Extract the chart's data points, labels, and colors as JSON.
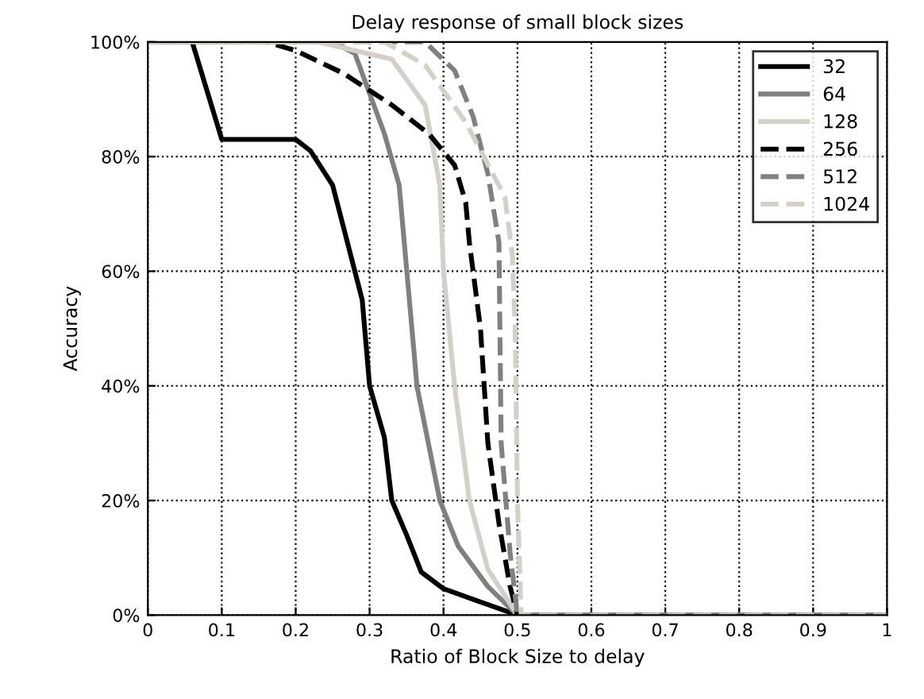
{
  "chart_data": {
    "type": "line",
    "title": "Delay response of small block sizes",
    "xlabel": "Ratio of Block Size to delay",
    "ylabel": "Accuracy",
    "xlim": [
      0,
      1
    ],
    "ylim": [
      0,
      100
    ],
    "xticks": [
      0,
      0.1,
      0.2,
      0.3,
      0.4,
      0.5,
      0.6,
      0.7,
      0.8,
      0.9,
      1
    ],
    "yticks": [
      {
        "value": 0,
        "label": "0%"
      },
      {
        "value": 20,
        "label": "20%"
      },
      {
        "value": 40,
        "label": "40%"
      },
      {
        "value": 60,
        "label": "60%"
      },
      {
        "value": 80,
        "label": "80%"
      },
      {
        "value": 100,
        "label": "100%"
      }
    ],
    "grid": true,
    "legend": "top right",
    "marker": "none",
    "series": [
      {
        "name": "32",
        "color": "#000000",
        "line_style": "solid",
        "x": [
          0,
          0.06,
          0.1,
          0.15,
          0.2,
          0.22,
          0.25,
          0.27,
          0.29,
          0.3,
          0.32,
          0.33,
          0.35,
          0.37,
          0.4,
          0.45,
          0.5,
          1
        ],
        "values": [
          100,
          100,
          83,
          83,
          83,
          81,
          75,
          65,
          55,
          40,
          31,
          20,
          14,
          7.5,
          4.6,
          2.3,
          0,
          0
        ]
      },
      {
        "name": "64",
        "color": "#808080",
        "line_style": "solid",
        "x": [
          0,
          0.25,
          0.28,
          0.32,
          0.34,
          0.36,
          0.364,
          0.395,
          0.42,
          0.46,
          0.5,
          1
        ],
        "values": [
          100,
          100,
          98,
          84,
          75,
          46,
          40,
          20,
          12,
          5,
          0,
          0
        ]
      },
      {
        "name": "128",
        "color": "#d4d0c8",
        "line_style": "solid",
        "x": [
          0,
          0.23,
          0.33,
          0.375,
          0.395,
          0.4,
          0.415,
          0.435,
          0.46,
          0.5,
          1
        ],
        "values": [
          100,
          100,
          97,
          89,
          75,
          60,
          40,
          20,
          8,
          0,
          0
        ]
      },
      {
        "name": "256",
        "color": "#000000",
        "line_style": "dashed",
        "x": [
          0,
          0.16,
          0.2,
          0.265,
          0.33,
          0.38,
          0.415,
          0.43,
          0.435,
          0.45,
          0.46,
          0.475,
          0.49,
          0.5,
          1
        ],
        "values": [
          100,
          100,
          98.5,
          94.5,
          89,
          84,
          78.5,
          72,
          65,
          50,
          30,
          16,
          5,
          0,
          0
        ]
      },
      {
        "name": "512",
        "color": "#808080",
        "line_style": "dashed",
        "x": [
          0,
          0.375,
          0.415,
          0.44,
          0.46,
          0.475,
          0.478,
          0.49,
          0.5,
          1
        ],
        "values": [
          100,
          100,
          95,
          87,
          77,
          65,
          30,
          11,
          0,
          0
        ]
      },
      {
        "name": "1024",
        "color": "#d4d0c8",
        "line_style": "dashed",
        "x": [
          0,
          0.32,
          0.375,
          0.43,
          0.483,
          0.493,
          0.497,
          0.5,
          0.505,
          1
        ],
        "values": [
          100,
          100,
          96,
          86,
          73,
          63,
          50,
          20,
          0,
          0
        ]
      }
    ]
  }
}
